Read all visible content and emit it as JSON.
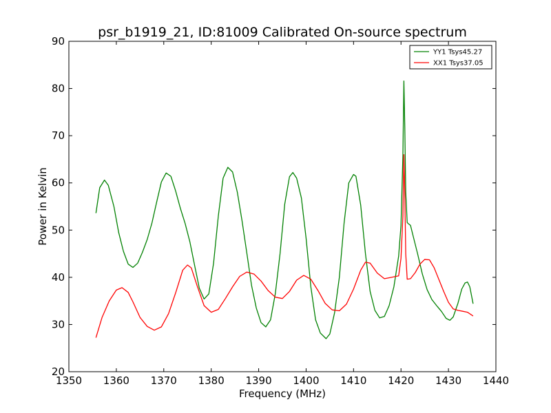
{
  "chart_data": {
    "type": "line",
    "title": "psr_b1919_21, ID:81009 Calibrated On-source spectrum",
    "xlabel": "Frequency (MHz)",
    "ylabel": "Power in Kelvin",
    "xlim": [
      1350,
      1440
    ],
    "ylim": [
      20,
      90
    ],
    "xticks": [
      1350,
      1360,
      1370,
      1380,
      1390,
      1400,
      1410,
      1420,
      1430,
      1440
    ],
    "yticks": [
      20,
      30,
      40,
      50,
      60,
      70,
      80,
      90
    ],
    "grid": false,
    "legend_position": "top-right",
    "series": [
      {
        "name": "YY1 Tsys45.27",
        "color": "#008000",
        "x": [
          1355.7,
          1356.5,
          1357.5,
          1358.3,
          1359.5,
          1360.5,
          1361.5,
          1362.5,
          1363.5,
          1364.5,
          1365.5,
          1366.5,
          1367.5,
          1368.5,
          1369.5,
          1370.5,
          1371.5,
          1372.5,
          1373.5,
          1374.5,
          1375.5,
          1376.5,
          1377.5,
          1378.5,
          1379.5,
          1380.5,
          1381.5,
          1382.5,
          1383.5,
          1384.5,
          1385.5,
          1386.5,
          1387.5,
          1388.5,
          1389.5,
          1390.5,
          1391.5,
          1392.5,
          1393.5,
          1394.5,
          1395.5,
          1396.5,
          1397.2,
          1398.0,
          1399.0,
          1400.0,
          1401.0,
          1402.0,
          1403.0,
          1404.2,
          1405.0,
          1406.0,
          1407.0,
          1408.0,
          1409.0,
          1410.0,
          1410.5,
          1411.5,
          1412.5,
          1413.5,
          1414.5,
          1415.5,
          1416.5,
          1417.5,
          1418.5,
          1419.5,
          1420.0,
          1420.4,
          1420.6,
          1420.8,
          1421.0,
          1421.3,
          1421.5,
          1422.0,
          1422.5,
          1423.5,
          1424.5,
          1425.5,
          1426.5,
          1427.5,
          1428.5,
          1429.5,
          1430.3,
          1431.0,
          1432.0,
          1432.8,
          1433.5,
          1434.0,
          1434.5,
          1435.2
        ],
        "y": [
          53.6,
          59.0,
          60.6,
          59.5,
          55.0,
          49.5,
          45.5,
          42.8,
          42.1,
          43.0,
          45.3,
          48.0,
          51.5,
          55.9,
          60.2,
          62.1,
          61.4,
          58.3,
          54.6,
          51.4,
          47.5,
          42.5,
          37.7,
          35.4,
          36.5,
          43.0,
          53.0,
          61.0,
          63.3,
          62.3,
          58.0,
          52.0,
          45.2,
          38.3,
          33.5,
          30.4,
          29.5,
          31.0,
          36.5,
          45.0,
          55.5,
          61.3,
          62.2,
          61.0,
          56.8,
          48.3,
          38.0,
          31.0,
          28.2,
          27.0,
          28.0,
          32.5,
          40.0,
          51.5,
          60.0,
          61.8,
          61.4,
          55.3,
          45.0,
          37.0,
          33.0,
          31.4,
          31.7,
          34.0,
          38.0,
          44.5,
          51.0,
          66.0,
          81.6,
          72.0,
          58.0,
          51.6,
          51.4,
          51.0,
          49.0,
          45.0,
          40.7,
          37.4,
          35.3,
          34.0,
          32.8,
          31.3,
          30.9,
          31.6,
          34.5,
          37.5,
          38.8,
          39.0,
          38.0,
          34.4
        ]
      },
      {
        "name": "XX1 Tsys37.05",
        "color": "#ff0000",
        "x": [
          1355.7,
          1357.0,
          1358.5,
          1360.0,
          1361.2,
          1362.5,
          1363.5,
          1365.0,
          1366.5,
          1368.0,
          1369.5,
          1371.0,
          1372.5,
          1374.0,
          1375.0,
          1375.8,
          1377.0,
          1378.5,
          1380.0,
          1381.5,
          1383.0,
          1384.5,
          1386.0,
          1387.5,
          1389.0,
          1390.5,
          1392.0,
          1393.5,
          1395.0,
          1396.5,
          1398.0,
          1399.5,
          1401.0,
          1402.5,
          1404.0,
          1405.5,
          1407.0,
          1408.5,
          1410.0,
          1411.5,
          1412.5,
          1413.5,
          1415.0,
          1416.5,
          1418.0,
          1419.5,
          1420.0,
          1420.4,
          1420.6,
          1420.8,
          1421.0,
          1421.3,
          1422.0,
          1423.0,
          1424.0,
          1425.0,
          1426.0,
          1427.0,
          1428.0,
          1429.0,
          1430.0,
          1431.0,
          1432.0,
          1433.0,
          1434.0,
          1435.2
        ],
        "y": [
          27.2,
          31.5,
          35.0,
          37.3,
          37.8,
          36.8,
          34.8,
          31.5,
          29.6,
          28.8,
          29.5,
          32.3,
          36.7,
          41.5,
          42.6,
          42.0,
          38.3,
          34.0,
          32.6,
          33.2,
          35.5,
          38.0,
          40.2,
          41.1,
          40.7,
          39.2,
          37.2,
          35.8,
          35.5,
          37.0,
          39.4,
          40.4,
          39.6,
          37.2,
          34.5,
          33.1,
          32.9,
          34.3,
          37.5,
          41.5,
          43.2,
          43.0,
          40.9,
          39.7,
          40.0,
          40.3,
          44.0,
          53.0,
          66.0,
          58.0,
          45.0,
          39.6,
          39.7,
          41.0,
          42.8,
          43.8,
          43.7,
          42.0,
          39.5,
          37.0,
          34.7,
          33.3,
          33.0,
          32.8,
          32.6,
          31.8
        ]
      }
    ]
  }
}
